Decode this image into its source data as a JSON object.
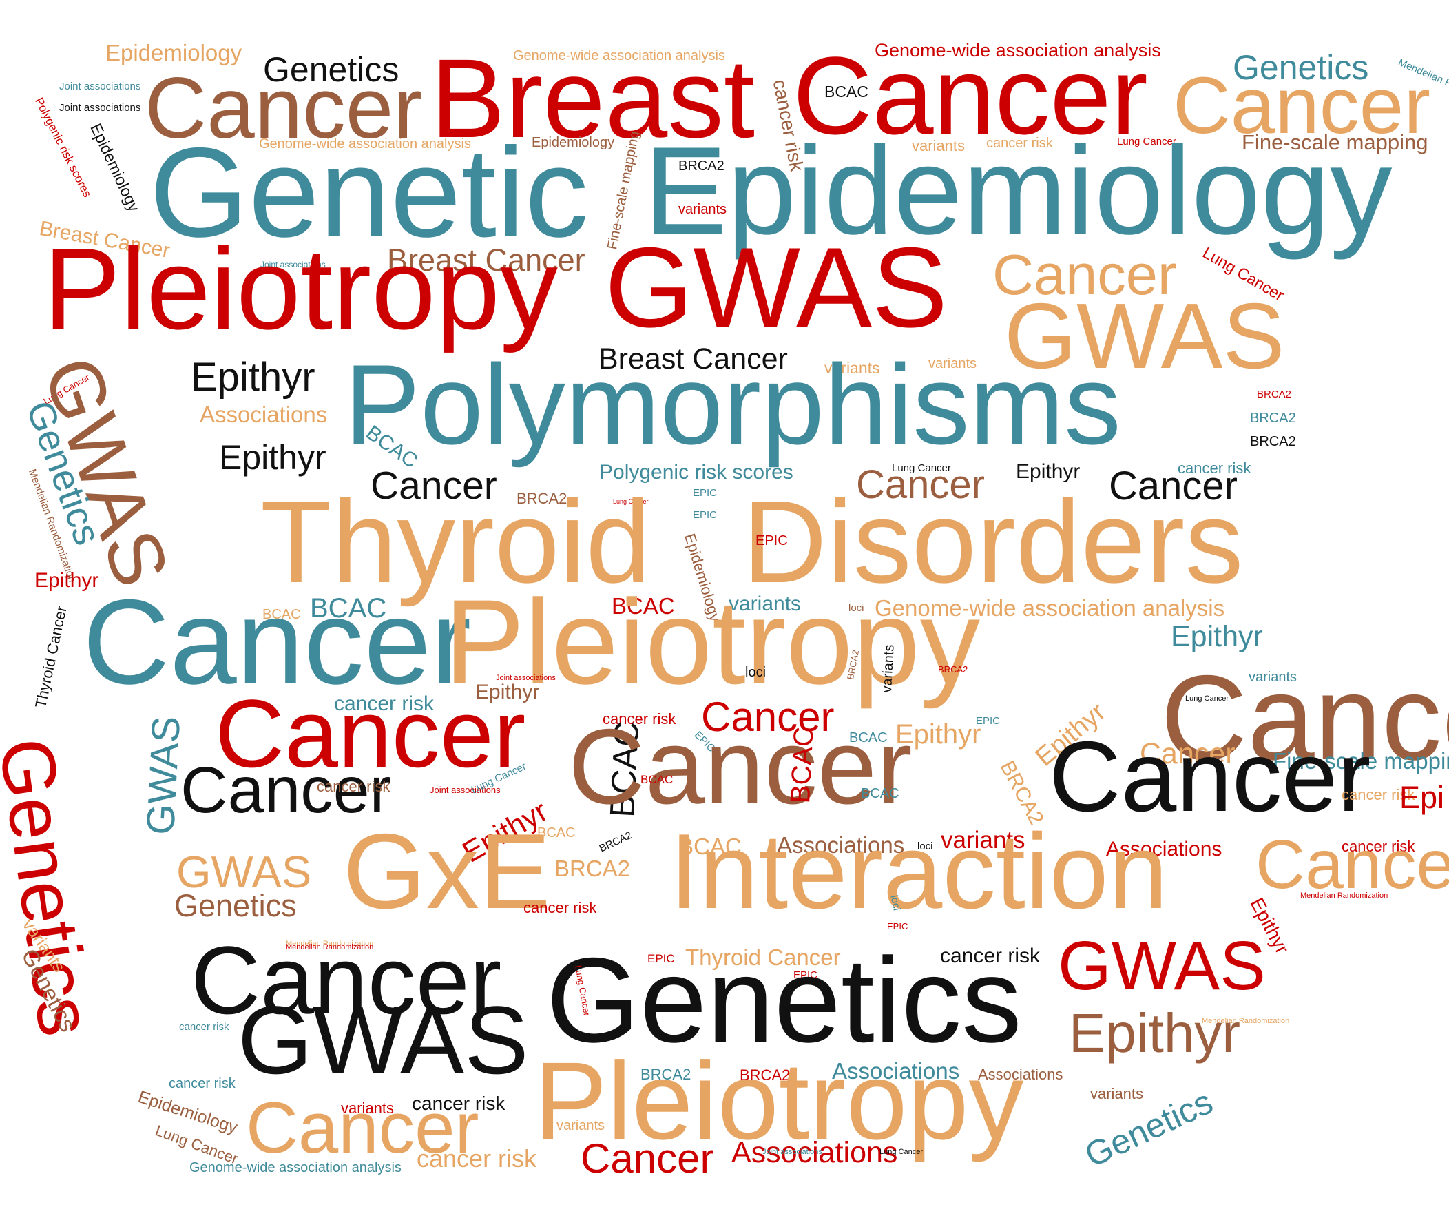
{
  "palette": {
    "red": "#cc0000",
    "teal": "#3f8b9b",
    "brown": "#9b5f3f",
    "orange": "#e6a562",
    "black": "#111111"
  },
  "words": [
    {
      "text": "Epidemiology",
      "color": "orange"
    },
    {
      "text": "Genetics",
      "color": "black"
    },
    {
      "text": "Genome-wide association analysis",
      "color": "orange"
    },
    {
      "text": "Genome-wide association analysis",
      "color": "red"
    },
    {
      "text": "Genetics",
      "color": "teal"
    },
    {
      "text": "Mendelian Randomization",
      "color": "teal"
    },
    {
      "text": "Joint associations",
      "color": "teal"
    },
    {
      "text": "Joint associations",
      "color": "black"
    },
    {
      "text": "Cancer",
      "color": "brown"
    },
    {
      "text": "Breast",
      "color": "red"
    },
    {
      "text": "cancer risk",
      "color": "brown"
    },
    {
      "text": "BCAC",
      "color": "black"
    },
    {
      "text": "Cancer",
      "color": "red"
    },
    {
      "text": "Cancer",
      "color": "orange"
    },
    {
      "text": "Polygenic risk scores",
      "color": "red"
    },
    {
      "text": "Epidemiology",
      "color": "black"
    },
    {
      "text": "Genome-wide association analysis",
      "color": "orange"
    },
    {
      "text": "Epidemiology",
      "color": "brown"
    },
    {
      "text": "Fine-scale mapping",
      "color": "brown"
    },
    {
      "text": "variants",
      "color": "orange"
    },
    {
      "text": "cancer risk",
      "color": "orange"
    },
    {
      "text": "Lung Cancer",
      "color": "red"
    },
    {
      "text": "Fine-scale mapping",
      "color": "brown"
    },
    {
      "text": "Genetic",
      "color": "teal"
    },
    {
      "text": "BRCA2",
      "color": "black"
    },
    {
      "text": "Epidemiology",
      "color": "teal"
    },
    {
      "text": "variants",
      "color": "red"
    },
    {
      "text": "Breast Cancer",
      "color": "orange"
    },
    {
      "text": "Joint associations",
      "color": "teal"
    },
    {
      "text": "Breast Cancer",
      "color": "brown"
    },
    {
      "text": "Lung Cancer",
      "color": "red"
    },
    {
      "text": "Pleiotropy",
      "color": "red"
    },
    {
      "text": "GWAS",
      "color": "red"
    },
    {
      "text": "Cancer",
      "color": "orange"
    },
    {
      "text": "GWAS",
      "color": "orange"
    },
    {
      "text": "Breast Cancer",
      "color": "black"
    },
    {
      "text": "variants",
      "color": "orange"
    },
    {
      "text": "variants",
      "color": "orange"
    },
    {
      "text": "Lung Cancer",
      "color": "red"
    },
    {
      "text": "GWAS",
      "color": "brown"
    },
    {
      "text": "Epithyr",
      "color": "black"
    },
    {
      "text": "Polymorphisms",
      "color": "teal"
    },
    {
      "text": "BRCA2",
      "color": "red"
    },
    {
      "text": "BRCA2",
      "color": "teal"
    },
    {
      "text": "BRCA2",
      "color": "black"
    },
    {
      "text": "Genetics",
      "color": "teal"
    },
    {
      "text": "Associations",
      "color": "orange"
    },
    {
      "text": "BCAC",
      "color": "teal"
    },
    {
      "text": "Epithyr",
      "color": "black"
    },
    {
      "text": "Mendelian Randomization",
      "color": "brown"
    },
    {
      "text": "Cancer",
      "color": "black"
    },
    {
      "text": "Polygenic risk scores",
      "color": "teal"
    },
    {
      "text": "Lung Cancer",
      "color": "black"
    },
    {
      "text": "Cancer",
      "color": "brown"
    },
    {
      "text": "Epithyr",
      "color": "black"
    },
    {
      "text": "cancer risk",
      "color": "teal"
    },
    {
      "text": "Cancer",
      "color": "black"
    },
    {
      "text": "BRCA2",
      "color": "brown"
    },
    {
      "text": "Lung Cancer",
      "color": "red"
    },
    {
      "text": "EPIC",
      "color": "teal"
    },
    {
      "text": "EPIC",
      "color": "teal"
    },
    {
      "text": "Thyroid",
      "color": "orange"
    },
    {
      "text": "Disorders",
      "color": "orange"
    },
    {
      "text": "EPIC",
      "color": "red"
    },
    {
      "text": "Epidemiology",
      "color": "brown"
    },
    {
      "text": "Epithyr",
      "color": "red"
    },
    {
      "text": "Thyroid Cancer",
      "color": "black"
    },
    {
      "text": "BCAC",
      "color": "orange"
    },
    {
      "text": "BCAC",
      "color": "teal"
    },
    {
      "text": "BCAC",
      "color": "red"
    },
    {
      "text": "variants",
      "color": "teal"
    },
    {
      "text": "loci",
      "color": "brown"
    },
    {
      "text": "Genome-wide association analysis",
      "color": "orange"
    },
    {
      "text": "Cancer",
      "color": "teal"
    },
    {
      "text": "Pleiotropy",
      "color": "orange"
    },
    {
      "text": "Epithyr",
      "color": "teal"
    },
    {
      "text": "Joint associations",
      "color": "red"
    },
    {
      "text": "Epithyr",
      "color": "brown"
    },
    {
      "text": "loci",
      "color": "black"
    },
    {
      "text": "BRCA2",
      "color": "brown"
    },
    {
      "text": "variants",
      "color": "black"
    },
    {
      "text": "BRCA2",
      "color": "red"
    },
    {
      "text": "Cancer",
      "color": "brown"
    },
    {
      "text": "variants",
      "color": "teal"
    },
    {
      "text": "Lung Cancer",
      "color": "black"
    },
    {
      "text": "cancer risk",
      "color": "teal"
    },
    {
      "text": "Genetics",
      "color": "red"
    },
    {
      "text": "GWAS",
      "color": "teal"
    },
    {
      "text": "Cancer",
      "color": "red"
    },
    {
      "text": "cancer risk",
      "color": "red"
    },
    {
      "text": "Cancer",
      "color": "red"
    },
    {
      "text": "EPIC",
      "color": "teal"
    },
    {
      "text": "BCAC",
      "color": "teal"
    },
    {
      "text": "Epithyr",
      "color": "orange"
    },
    {
      "text": "EPIC",
      "color": "teal"
    },
    {
      "text": "Epithyr",
      "color": "orange"
    },
    {
      "text": "Cancer",
      "color": "orange"
    },
    {
      "text": "Fine-scale mapping",
      "color": "teal"
    },
    {
      "text": "Cancer",
      "color": "black"
    },
    {
      "text": "cancer risk",
      "color": "brown"
    },
    {
      "text": "Joint associations",
      "color": "red"
    },
    {
      "text": "Lung Cancer",
      "color": "teal"
    },
    {
      "text": "Epithyr",
      "color": "red"
    },
    {
      "text": "BCAC",
      "color": "black"
    },
    {
      "text": "Cancer",
      "color": "brown"
    },
    {
      "text": "BCAC",
      "color": "red"
    },
    {
      "text": "BCAC",
      "color": "red"
    },
    {
      "text": "BCAC",
      "color": "teal"
    },
    {
      "text": "BRCA2",
      "color": "orange"
    },
    {
      "text": "Cancer",
      "color": "black"
    },
    {
      "text": "cancer risk",
      "color": "orange"
    },
    {
      "text": "Epi",
      "color": "red"
    },
    {
      "text": "BCAC",
      "color": "orange"
    },
    {
      "text": "BRCA2",
      "color": "black"
    },
    {
      "text": "BCAC",
      "color": "orange"
    },
    {
      "text": "Associations",
      "color": "brown"
    },
    {
      "text": "loci",
      "color": "black"
    },
    {
      "text": "variants",
      "color": "red"
    },
    {
      "text": "Associations",
      "color": "red"
    },
    {
      "text": "cancer risk",
      "color": "red"
    },
    {
      "text": "GWAS",
      "color": "orange"
    },
    {
      "text": "BRCA2",
      "color": "orange"
    },
    {
      "text": "GxE",
      "color": "orange"
    },
    {
      "text": "Interaction",
      "color": "orange"
    },
    {
      "text": "Cancer",
      "color": "orange"
    },
    {
      "text": "Mendelian Randomization",
      "color": "red"
    },
    {
      "text": "Genetics",
      "color": "brown"
    },
    {
      "text": "cancer risk",
      "color": "red"
    },
    {
      "text": "Mendelian Randomization",
      "color": "orange"
    },
    {
      "text": "loci",
      "color": "teal"
    },
    {
      "text": "EPIC",
      "color": "red"
    },
    {
      "text": "Epithyr",
      "color": "red"
    },
    {
      "text": "variants",
      "color": "orange"
    },
    {
      "text": "Genetics",
      "color": "brown"
    },
    {
      "text": "Mendelian Randomization",
      "color": "red"
    },
    {
      "text": "Cancer",
      "color": "black"
    },
    {
      "text": "EPIC",
      "color": "red"
    },
    {
      "text": "Thyroid Cancer",
      "color": "orange"
    },
    {
      "text": "cancer risk",
      "color": "black"
    },
    {
      "text": "GWAS",
      "color": "red"
    },
    {
      "text": "EPIC",
      "color": "red"
    },
    {
      "text": "Genetics",
      "color": "black"
    },
    {
      "text": "Lung Cancer",
      "color": "red"
    },
    {
      "text": "Mendelian Randomization",
      "color": "orange"
    },
    {
      "text": "cancer risk",
      "color": "teal"
    },
    {
      "text": "GWAS",
      "color": "black"
    },
    {
      "text": "Epithyr",
      "color": "brown"
    },
    {
      "text": "cancer risk",
      "color": "teal"
    },
    {
      "text": "BRCA2",
      "color": "teal"
    },
    {
      "text": "BRCA2",
      "color": "red"
    },
    {
      "text": "Associations",
      "color": "teal"
    },
    {
      "text": "Associations",
      "color": "brown"
    },
    {
      "text": "variants",
      "color": "brown"
    },
    {
      "text": "Epidemiology",
      "color": "brown"
    },
    {
      "text": "variants",
      "color": "red"
    },
    {
      "text": "cancer risk",
      "color": "black"
    },
    {
      "text": "Pleiotropy",
      "color": "orange"
    },
    {
      "text": "Genetics",
      "color": "teal"
    },
    {
      "text": "Lung Cancer",
      "color": "brown"
    },
    {
      "text": "Cancer",
      "color": "orange"
    },
    {
      "text": "variants",
      "color": "orange"
    },
    {
      "text": "Genome-wide association analysis",
      "color": "teal"
    },
    {
      "text": "cancer risk",
      "color": "orange"
    },
    {
      "text": "Cancer",
      "color": "red"
    },
    {
      "text": "Associations",
      "color": "red"
    },
    {
      "text": "Joint associations",
      "color": "teal"
    },
    {
      "text": "Lung Cancer",
      "color": "black"
    }
  ]
}
